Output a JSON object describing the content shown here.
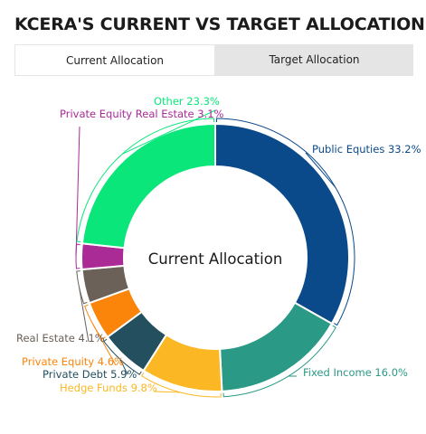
{
  "header": {
    "title": "KCERA'S CURRENT VS TARGET ALLOCATION"
  },
  "tabs": [
    {
      "label": "Current Allocation",
      "active": true
    },
    {
      "label": "Target Allocation",
      "active": false
    }
  ],
  "chart_data": {
    "type": "pie",
    "variant": "donut",
    "center_label": "Current Allocation",
    "unit": "%",
    "categories": [
      "Public Equties",
      "Fixed Income",
      "Hedge Funds",
      "Private Debt",
      "Private Equity",
      "Real Estate",
      "Private Equity Real Estate",
      "Other"
    ],
    "values": [
      33.2,
      16.0,
      9.8,
      5.9,
      4.6,
      4.1,
      3.1,
      23.3
    ],
    "labels": [
      "Public Equties 33.2%",
      "Fixed Income 16.0%",
      "Hedge Funds 9.8%",
      "Private Debt 5.9%",
      "Private Equity 4.6%",
      "Real Estate 4.1%",
      "Private Equity Real Estate 3.1%",
      "Other 23.3%"
    ],
    "colors": [
      "#0a4a8a",
      "#2a9a87",
      "#fbb824",
      "#234f5e",
      "#fb840a",
      "#6b6159",
      "#aa2a96",
      "#0ae67a"
    ],
    "label_colors": [
      "#0a4a8a",
      "#2a9a87",
      "#fbb824",
      "#234f5e",
      "#fb840a",
      "#6b6159",
      "#aa2a96",
      "#0ae67a"
    ]
  }
}
